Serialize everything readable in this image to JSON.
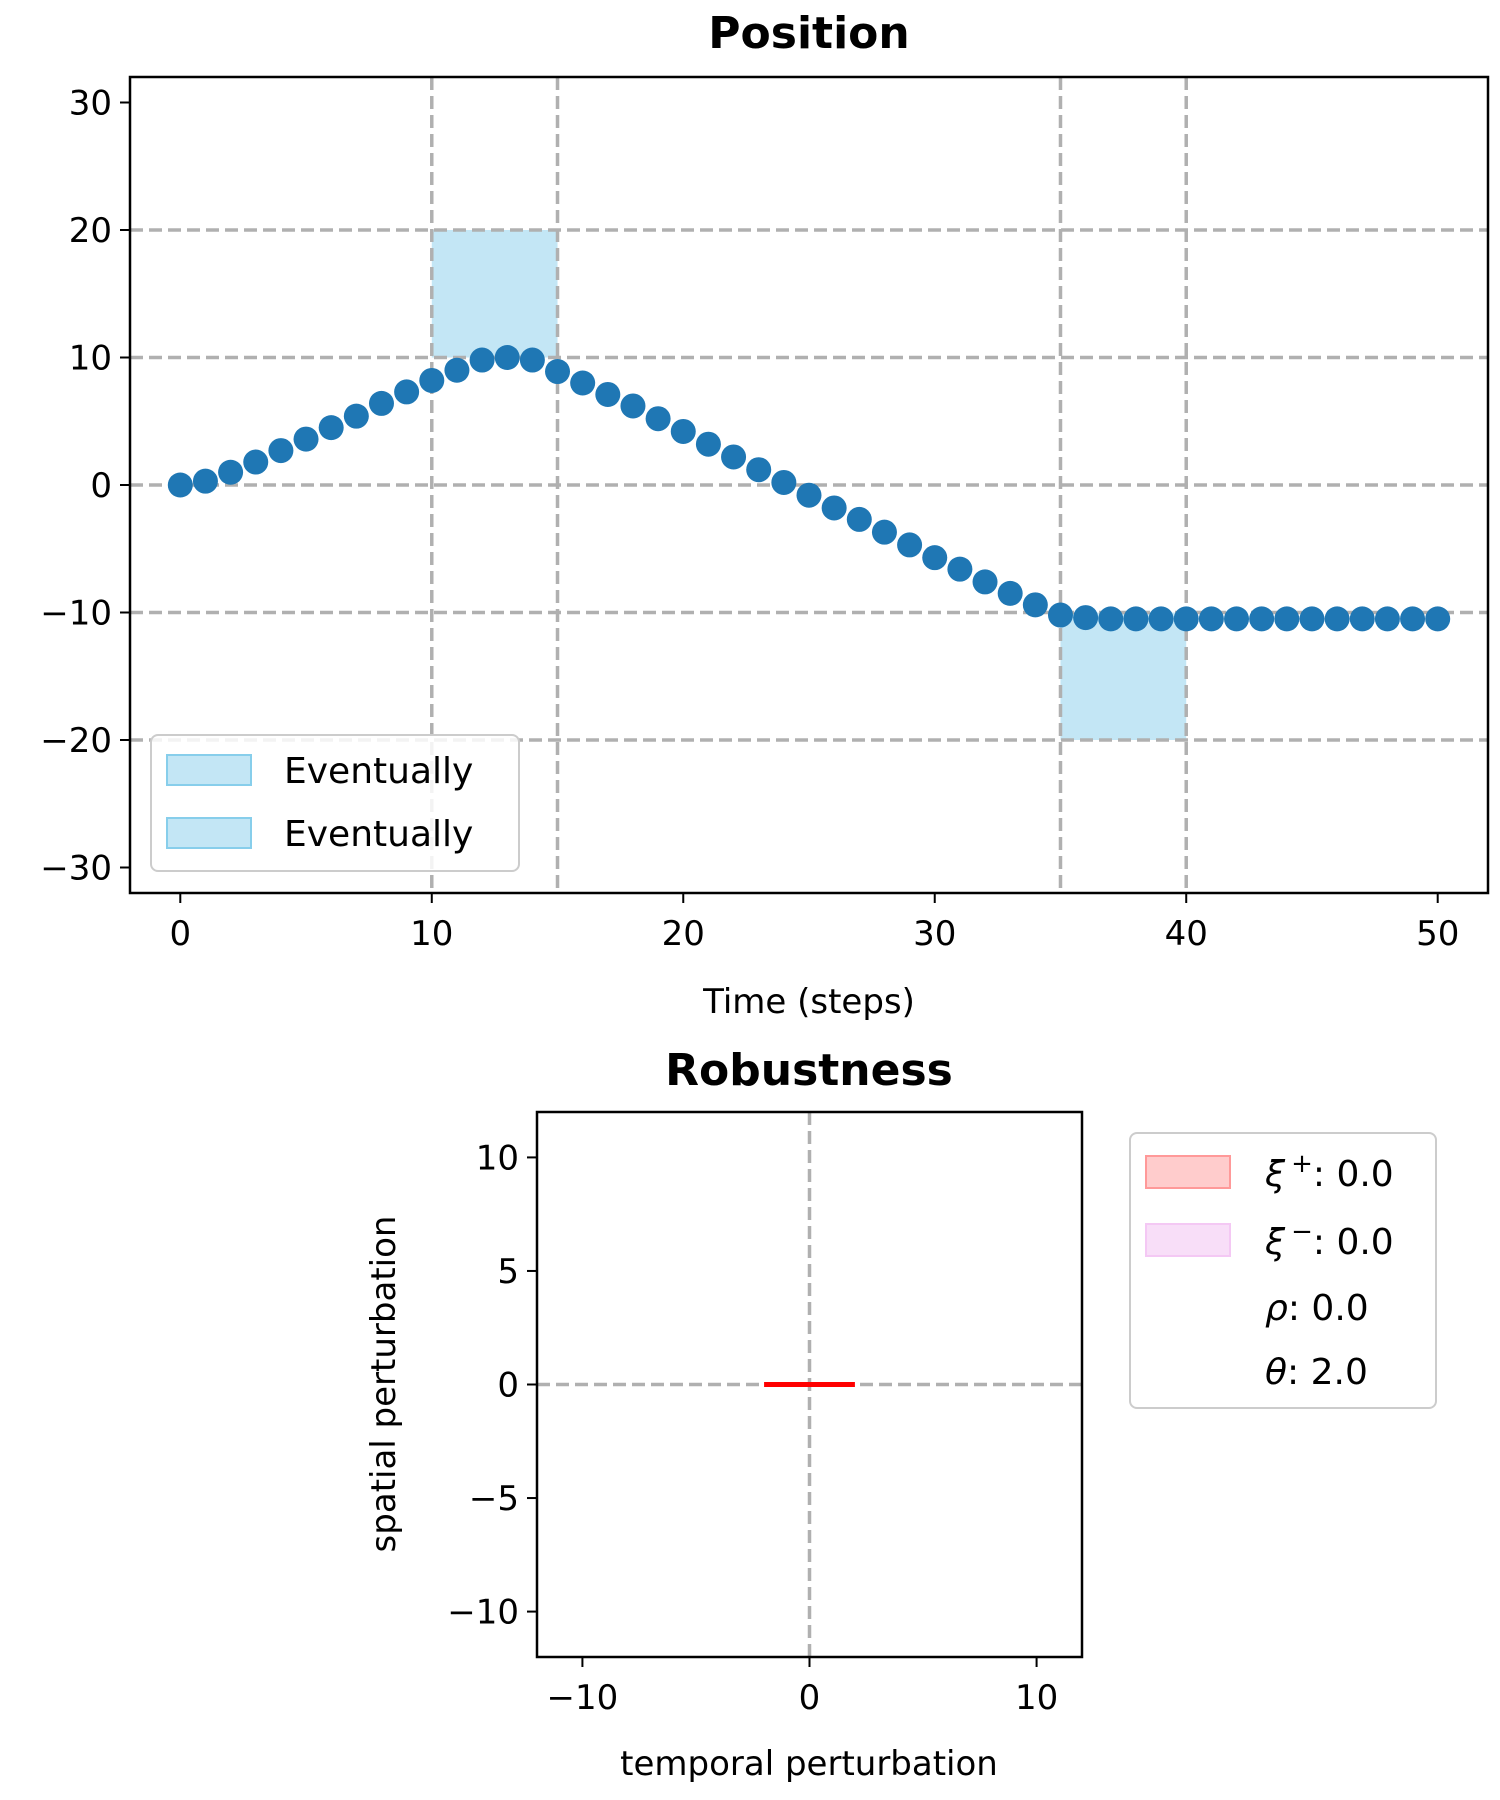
{
  "chart_data": [
    {
      "type": "scatter",
      "title": "Position",
      "xlabel": "Time (steps)",
      "ylabel": "",
      "xlim": [
        -2,
        52
      ],
      "ylim": [
        -32,
        32
      ],
      "xticks": [
        0,
        10,
        20,
        30,
        40,
        50
      ],
      "yticks": [
        -30,
        -20,
        -10,
        0,
        10,
        20,
        30
      ],
      "xtick_labels": [
        "0",
        "10",
        "20",
        "30",
        "40",
        "50"
      ],
      "ytick_labels": [
        "−30",
        "−20",
        "−10",
        "0",
        "10",
        "20",
        "30"
      ],
      "grid": "dashed",
      "series": [
        {
          "color": "#1f77b4",
          "x": [
            0,
            1,
            2,
            3,
            4,
            5,
            6,
            7,
            8,
            9,
            10,
            11,
            12,
            13,
            14,
            15,
            16,
            17,
            18,
            19,
            20,
            21,
            22,
            23,
            24,
            25,
            26,
            27,
            28,
            29,
            30,
            31,
            32,
            33,
            34,
            35,
            36,
            37,
            38,
            39,
            40,
            41,
            42,
            43,
            44,
            45,
            46,
            47,
            48,
            49,
            50
          ],
          "y": [
            0,
            0.3,
            1.0,
            1.8,
            2.7,
            3.6,
            4.5,
            5.4,
            6.4,
            7.3,
            8.2,
            9.0,
            9.8,
            10.0,
            9.8,
            8.9,
            8.0,
            7.1,
            6.2,
            5.2,
            4.2,
            3.2,
            2.2,
            1.2,
            0.2,
            -0.8,
            -1.8,
            -2.7,
            -3.7,
            -4.7,
            -5.7,
            -6.6,
            -7.6,
            -8.5,
            -9.4,
            -10.2,
            -10.4,
            -10.5,
            -10.5,
            -10.5,
            -10.5,
            -10.5,
            -10.5,
            -10.5,
            -10.5,
            -10.5,
            -10.5,
            -10.5,
            -10.5,
            -10.5,
            -10.5
          ]
        }
      ],
      "regions": [
        {
          "name": "Eventually",
          "x0": 10,
          "x1": 15,
          "y0": 10,
          "y1": 20,
          "color": "#87ceeb"
        },
        {
          "name": "Eventually",
          "x0": 35,
          "x1": 40,
          "y0": -20,
          "y1": -10,
          "color": "#87ceeb"
        }
      ],
      "vlines": [
        10,
        15,
        35,
        40
      ],
      "legend": {
        "placement": "lower-left",
        "entries": [
          "Eventually",
          "Eventually"
        ]
      }
    },
    {
      "type": "line",
      "title": "Robustness",
      "xlabel": "temporal perturbation",
      "ylabel": "spatial perturbation",
      "xlim": [
        -12,
        12
      ],
      "ylim": [
        -12,
        12
      ],
      "xticks": [
        -10,
        0,
        10
      ],
      "yticks": [
        -10,
        -5,
        0,
        5,
        10
      ],
      "xtick_labels": [
        "−10",
        "0",
        "10"
      ],
      "ytick_labels": [
        "−10",
        "−5",
        "0",
        "5",
        "10"
      ],
      "grid": "dashed zero lines",
      "series": [
        {
          "color": "#ff0000",
          "x": [
            -2,
            2
          ],
          "y": [
            0,
            0
          ]
        }
      ],
      "legend": {
        "placement": "outside-right",
        "entries": [
          {
            "symbol": "ξ",
            "sup": "+",
            "value": ": 0.0",
            "color": "#ff9999"
          },
          {
            "symbol": "ξ",
            "sup": "−",
            "value": ": 0.0",
            "color": "#f4c8f4"
          },
          {
            "symbol": "ρ",
            "sup": "",
            "value": ": 0.0",
            "color": ""
          },
          {
            "symbol": "θ",
            "sup": "",
            "value": ": 2.0",
            "color": ""
          }
        ]
      }
    }
  ]
}
